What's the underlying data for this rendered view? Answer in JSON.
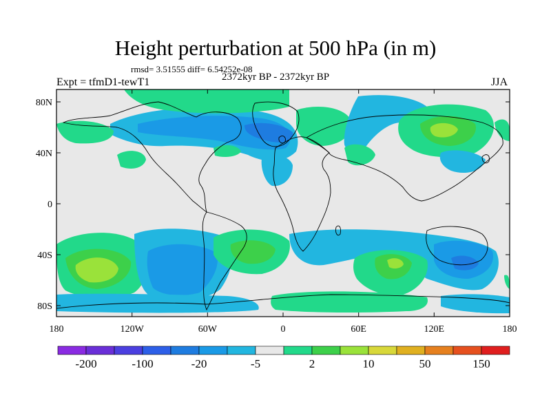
{
  "title": "Height perturbation at 500 hPa (in m)",
  "stats": "rmsd= 3.51555 diff= 6.54252e-08",
  "period": "2372kyr BP - 2372kyr BP",
  "expt": "Expt = tfmD1-tewT1",
  "season": "JJA",
  "lat_ticks": [
    "80N",
    "40N",
    "0",
    "40S",
    "80S"
  ],
  "lon_ticks": [
    "180",
    "120W",
    "60W",
    "0",
    "60E",
    "120E",
    "180"
  ],
  "colorbar": {
    "colors": [
      "#8a2be2",
      "#6a2fd8",
      "#4b3fe0",
      "#2d5fe8",
      "#1e7ce0",
      "#1a9ae6",
      "#22b6e0",
      "#e8e8e8",
      "#22d98a",
      "#3dd04a",
      "#9ae23a",
      "#d8d83a",
      "#e0b020",
      "#e6801e",
      "#e6501e",
      "#e01e1e"
    ],
    "labels": [
      "-200",
      "-100",
      "-20",
      "-5",
      "2",
      "10",
      "50",
      "150"
    ]
  },
  "map_colors": {
    "background": "#e8e8e8",
    "light_blue": "#22b6e0",
    "mid_blue": "#1a9ae6",
    "dark_blue": "#1e7ce0",
    "green": "#22d98a",
    "lime": "#3dd04a",
    "yellow_green": "#9ae23a"
  }
}
